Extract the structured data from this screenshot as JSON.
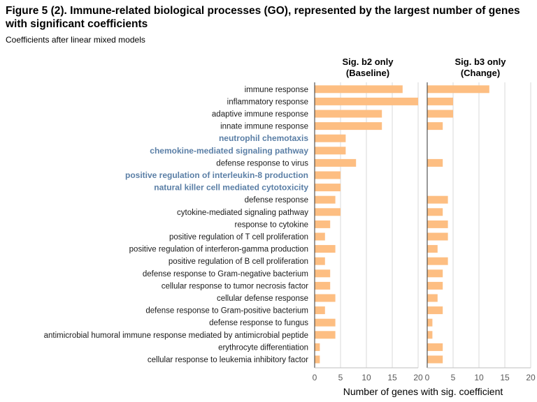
{
  "figure": {
    "title": "Figure 5 (2). Immune-related biological processes (GO), represented by the largest number of genes with significant coefficients",
    "subtitle": "Coefficients after linear mixed models"
  },
  "chart_data": {
    "type": "bar",
    "orientation": "horizontal",
    "xlabel": "Number of genes with sig. coefficient",
    "xlim": [
      0,
      20
    ],
    "xticks": [
      0,
      5,
      10,
      15,
      20
    ],
    "grid": true,
    "bar_color": "#FDBE82",
    "highlight_color": "#5B7FA6",
    "panels": [
      {
        "title_line1": "Sig. b2 only",
        "title_line2": "(Baseline)"
      },
      {
        "title_line1": "Sig. b3 only",
        "title_line2": "(Change)"
      }
    ],
    "categories": [
      "immune response",
      "inflammatory response",
      "adaptive immune response",
      "innate immune response",
      "neutrophil chemotaxis",
      "chemokine-mediated signaling pathway",
      "defense response to virus",
      "positive regulation of interleukin-8 production",
      "natural killer cell mediated cytotoxicity",
      "defense response",
      "cytokine-mediated signaling pathway",
      "response to cytokine",
      "positive regulation of T cell proliferation",
      "positive regulation of interferon-gamma production",
      "positive regulation of B cell proliferation",
      "defense response to Gram-negative bacterium",
      "cellular response to tumor necrosis factor",
      "cellular defense response",
      "defense response to Gram-positive bacterium",
      "defense response to fungus",
      "antimicrobial humoral immune response mediated by antimicrobial peptide",
      "erythrocyte differentiation",
      "cellular response to leukemia inhibitory factor"
    ],
    "highlighted": [
      "neutrophil chemotaxis",
      "chemokine-mediated signaling pathway",
      "positive regulation of interleukin-8 production",
      "natural killer cell mediated cytotoxicity"
    ],
    "series": [
      {
        "values": [
          17,
          20,
          13,
          13,
          6,
          6,
          8,
          5,
          5,
          4,
          5,
          3,
          2,
          4,
          2,
          3,
          3,
          4,
          2,
          4,
          4,
          1,
          1
        ]
      },
      {
        "values": [
          12,
          5,
          5,
          3,
          0,
          0,
          3,
          0,
          0,
          4,
          3,
          4,
          4,
          2,
          4,
          3,
          3,
          2,
          3,
          1,
          1,
          3,
          3
        ]
      }
    ]
  }
}
